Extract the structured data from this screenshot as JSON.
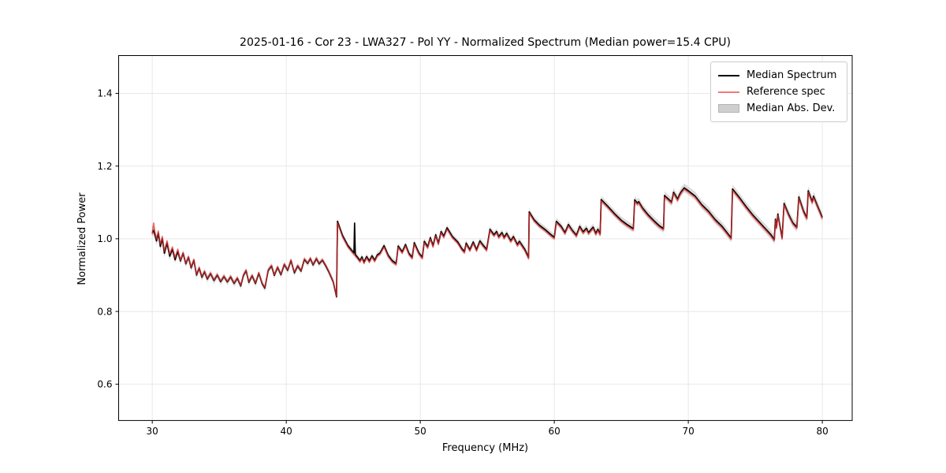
{
  "chart_data": {
    "type": "line",
    "title": "2025-01-16 - Cor 23 - LWA327 - Pol YY - Normalized Spectrum (Median power=15.4 CPU)",
    "xlabel": "Frequency (MHz)",
    "ylabel": "Normalized Power",
    "xlim": [
      27.49,
      82.23
    ],
    "ylim": [
      0.5,
      1.504
    ],
    "xticks": [
      30,
      40,
      50,
      60,
      70,
      80
    ],
    "xtick_labels": [
      "30",
      "40",
      "50",
      "60",
      "70",
      "80"
    ],
    "yticks": [
      0.6,
      0.8,
      1.0,
      1.2,
      1.4
    ],
    "ytick_labels": [
      "0.6",
      "0.8",
      "1.0",
      "1.2",
      "1.4"
    ],
    "grid": true,
    "grid_color": "#e8e8e8",
    "spine_color": "#000000",
    "legend": {
      "position": "upper right",
      "entries": [
        {
          "label": "Median Spectrum",
          "swatch": "line",
          "swatch_color": "#000000"
        },
        {
          "label": "Reference spec",
          "swatch": "line",
          "swatch_color": "#f27a7a"
        },
        {
          "label": "Median Abs. Dev.",
          "swatch": "patch",
          "swatch_color": "#cfcfcf"
        }
      ]
    },
    "series": [
      {
        "id": "mad_band",
        "name": "Median Abs. Dev.",
        "kind": "band",
        "around": "median",
        "fill_color": "#bfbfbf",
        "fill_alpha": 0.55,
        "z": 1,
        "half_width_points": [
          [
            30,
            0.013
          ],
          [
            32,
            0.01
          ],
          [
            36,
            0.009
          ],
          [
            44,
            0.008
          ],
          [
            52,
            0.008
          ],
          [
            58,
            0.009
          ],
          [
            64,
            0.01
          ],
          [
            69,
            0.012
          ],
          [
            74,
            0.012
          ],
          [
            80,
            0.013
          ]
        ]
      },
      {
        "id": "median",
        "name": "Median Spectrum",
        "kind": "line",
        "color": "#000000",
        "alpha": 1,
        "line_width": 1.7,
        "z": 2,
        "derive_from": "reference",
        "start_override": [
          [
            30.0,
            1.016
          ],
          [
            30.05,
            1.021
          ],
          [
            30.1,
            1.023
          ],
          [
            30.2,
            1.01
          ],
          [
            30.32,
            0.994
          ]
        ],
        "delta_segments": [
          [
            31.9,
            -0.006
          ],
          [
            43.8,
            -0.002
          ],
          [
            82.3,
            0.004
          ]
        ],
        "spike": {
          "x": 45.1,
          "top": 1.043,
          "width": 0.1
        }
      },
      {
        "id": "reference",
        "name": "Reference spec",
        "kind": "line",
        "color": "#e03030",
        "alpha": 0.72,
        "line_width": 1.7,
        "z": 3,
        "points": [
          [
            30.0,
            1.012
          ],
          [
            30.05,
            1.03
          ],
          [
            30.1,
            1.043
          ],
          [
            30.2,
            1.018
          ],
          [
            30.32,
            0.999
          ],
          [
            30.45,
            1.021
          ],
          [
            30.6,
            0.985
          ],
          [
            30.75,
            1.006
          ],
          [
            30.9,
            0.966
          ],
          [
            31.1,
            0.994
          ],
          [
            31.3,
            0.958
          ],
          [
            31.5,
            0.977
          ],
          [
            31.7,
            0.948
          ],
          [
            31.9,
            0.971
          ],
          [
            32.1,
            0.941
          ],
          [
            32.3,
            0.962
          ],
          [
            32.5,
            0.933
          ],
          [
            32.7,
            0.951
          ],
          [
            32.9,
            0.922
          ],
          [
            33.1,
            0.943
          ],
          [
            33.3,
            0.902
          ],
          [
            33.5,
            0.921
          ],
          [
            33.7,
            0.896
          ],
          [
            33.9,
            0.911
          ],
          [
            34.1,
            0.891
          ],
          [
            34.35,
            0.906
          ],
          [
            34.6,
            0.887
          ],
          [
            34.85,
            0.902
          ],
          [
            35.1,
            0.884
          ],
          [
            35.35,
            0.898
          ],
          [
            35.6,
            0.883
          ],
          [
            35.85,
            0.897
          ],
          [
            36.1,
            0.879
          ],
          [
            36.35,
            0.893
          ],
          [
            36.6,
            0.872
          ],
          [
            36.8,
            0.901
          ],
          [
            37.0,
            0.914
          ],
          [
            37.2,
            0.882
          ],
          [
            37.45,
            0.9
          ],
          [
            37.7,
            0.879
          ],
          [
            37.95,
            0.907
          ],
          [
            38.2,
            0.878
          ],
          [
            38.4,
            0.866
          ],
          [
            38.65,
            0.915
          ],
          [
            38.9,
            0.927
          ],
          [
            39.1,
            0.901
          ],
          [
            39.35,
            0.923
          ],
          [
            39.6,
            0.903
          ],
          [
            39.85,
            0.931
          ],
          [
            40.1,
            0.915
          ],
          [
            40.35,
            0.942
          ],
          [
            40.6,
            0.908
          ],
          [
            40.85,
            0.927
          ],
          [
            41.1,
            0.913
          ],
          [
            41.35,
            0.945
          ],
          [
            41.6,
            0.934
          ],
          [
            41.8,
            0.947
          ],
          [
            42.0,
            0.93
          ],
          [
            42.25,
            0.947
          ],
          [
            42.45,
            0.933
          ],
          [
            42.7,
            0.943
          ],
          [
            42.95,
            0.927
          ],
          [
            43.2,
            0.909
          ],
          [
            43.5,
            0.884
          ],
          [
            43.75,
            0.842
          ],
          [
            43.82,
            1.044
          ],
          [
            44.2,
            1.005
          ],
          [
            44.6,
            0.977
          ],
          [
            45.0,
            0.959
          ],
          [
            45.3,
            0.946
          ],
          [
            45.5,
            0.936
          ],
          [
            45.65,
            0.946
          ],
          [
            45.8,
            0.932
          ],
          [
            46.0,
            0.947
          ],
          [
            46.2,
            0.935
          ],
          [
            46.4,
            0.949
          ],
          [
            46.6,
            0.937
          ],
          [
            46.8,
            0.952
          ],
          [
            47.0,
            0.957
          ],
          [
            47.3,
            0.977
          ],
          [
            47.6,
            0.951
          ],
          [
            47.9,
            0.936
          ],
          [
            48.2,
            0.928
          ],
          [
            48.35,
            0.976
          ],
          [
            48.65,
            0.96
          ],
          [
            48.9,
            0.98
          ],
          [
            49.15,
            0.956
          ],
          [
            49.4,
            0.945
          ],
          [
            49.55,
            0.985
          ],
          [
            49.9,
            0.957
          ],
          [
            50.15,
            0.945
          ],
          [
            50.3,
            0.989
          ],
          [
            50.55,
            0.974
          ],
          [
            50.75,
            0.999
          ],
          [
            50.95,
            0.977
          ],
          [
            51.15,
            1.007
          ],
          [
            51.35,
            0.984
          ],
          [
            51.55,
            1.016
          ],
          [
            51.75,
            1.003
          ],
          [
            52.0,
            1.026
          ],
          [
            52.4,
            1.002
          ],
          [
            52.8,
            0.987
          ],
          [
            53.1,
            0.969
          ],
          [
            53.3,
            0.961
          ],
          [
            53.42,
            0.984
          ],
          [
            53.7,
            0.966
          ],
          [
            53.95,
            0.987
          ],
          [
            54.2,
            0.966
          ],
          [
            54.45,
            0.99
          ],
          [
            54.7,
            0.978
          ],
          [
            54.95,
            0.967
          ],
          [
            55.2,
            1.022
          ],
          [
            55.5,
            1.007
          ],
          [
            55.7,
            1.016
          ],
          [
            55.85,
            1.002
          ],
          [
            56.1,
            1.013
          ],
          [
            56.25,
            1.0
          ],
          [
            56.45,
            1.011
          ],
          [
            56.75,
            0.991
          ],
          [
            56.95,
            1.002
          ],
          [
            57.25,
            0.98
          ],
          [
            57.4,
            0.989
          ],
          [
            57.8,
            0.967
          ],
          [
            58.08,
            0.945
          ],
          [
            58.13,
            1.07
          ],
          [
            58.5,
            1.048
          ],
          [
            58.9,
            1.033
          ],
          [
            59.3,
            1.022
          ],
          [
            59.7,
            1.009
          ],
          [
            60.0,
            1.0
          ],
          [
            60.15,
            1.044
          ],
          [
            60.5,
            1.031
          ],
          [
            60.8,
            1.013
          ],
          [
            61.05,
            1.035
          ],
          [
            61.35,
            1.019
          ],
          [
            61.65,
            1.006
          ],
          [
            61.9,
            1.03
          ],
          [
            62.15,
            1.015
          ],
          [
            62.4,
            1.025
          ],
          [
            62.55,
            1.013
          ],
          [
            62.9,
            1.028
          ],
          [
            63.1,
            1.011
          ],
          [
            63.25,
            1.022
          ],
          [
            63.42,
            1.01
          ],
          [
            63.5,
            1.104
          ],
          [
            64.0,
            1.085
          ],
          [
            64.5,
            1.065
          ],
          [
            65.0,
            1.047
          ],
          [
            65.4,
            1.036
          ],
          [
            65.9,
            1.024
          ],
          [
            66.0,
            1.103
          ],
          [
            66.2,
            1.094
          ],
          [
            66.3,
            1.098
          ],
          [
            66.6,
            1.08
          ],
          [
            67.0,
            1.062
          ],
          [
            67.4,
            1.047
          ],
          [
            67.8,
            1.033
          ],
          [
            68.15,
            1.024
          ],
          [
            68.22,
            1.115
          ],
          [
            68.5,
            1.106
          ],
          [
            68.75,
            1.097
          ],
          [
            68.9,
            1.124
          ],
          [
            69.05,
            1.115
          ],
          [
            69.2,
            1.105
          ],
          [
            69.35,
            1.118
          ],
          [
            69.5,
            1.127
          ],
          [
            69.7,
            1.136
          ],
          [
            70.0,
            1.128
          ],
          [
            70.5,
            1.114
          ],
          [
            71.0,
            1.09
          ],
          [
            71.5,
            1.072
          ],
          [
            72.0,
            1.049
          ],
          [
            72.5,
            1.031
          ],
          [
            72.8,
            1.017
          ],
          [
            73.2,
            0.998
          ],
          [
            73.3,
            1.133
          ],
          [
            73.8,
            1.11
          ],
          [
            74.3,
            1.085
          ],
          [
            74.8,
            1.062
          ],
          [
            75.3,
            1.042
          ],
          [
            75.8,
            1.022
          ],
          [
            76.15,
            1.008
          ],
          [
            76.42,
            0.994
          ],
          [
            76.5,
            1.05
          ],
          [
            76.58,
            1.028
          ],
          [
            76.68,
            1.064
          ],
          [
            76.8,
            1.04
          ],
          [
            77.0,
            0.999
          ],
          [
            77.15,
            1.093
          ],
          [
            77.5,
            1.062
          ],
          [
            77.8,
            1.04
          ],
          [
            78.1,
            1.028
          ],
          [
            78.25,
            1.111
          ],
          [
            78.6,
            1.072
          ],
          [
            78.85,
            1.054
          ],
          [
            78.95,
            1.128
          ],
          [
            79.25,
            1.098
          ],
          [
            79.35,
            1.113
          ],
          [
            79.65,
            1.086
          ],
          [
            80.0,
            1.055
          ]
        ]
      }
    ]
  }
}
